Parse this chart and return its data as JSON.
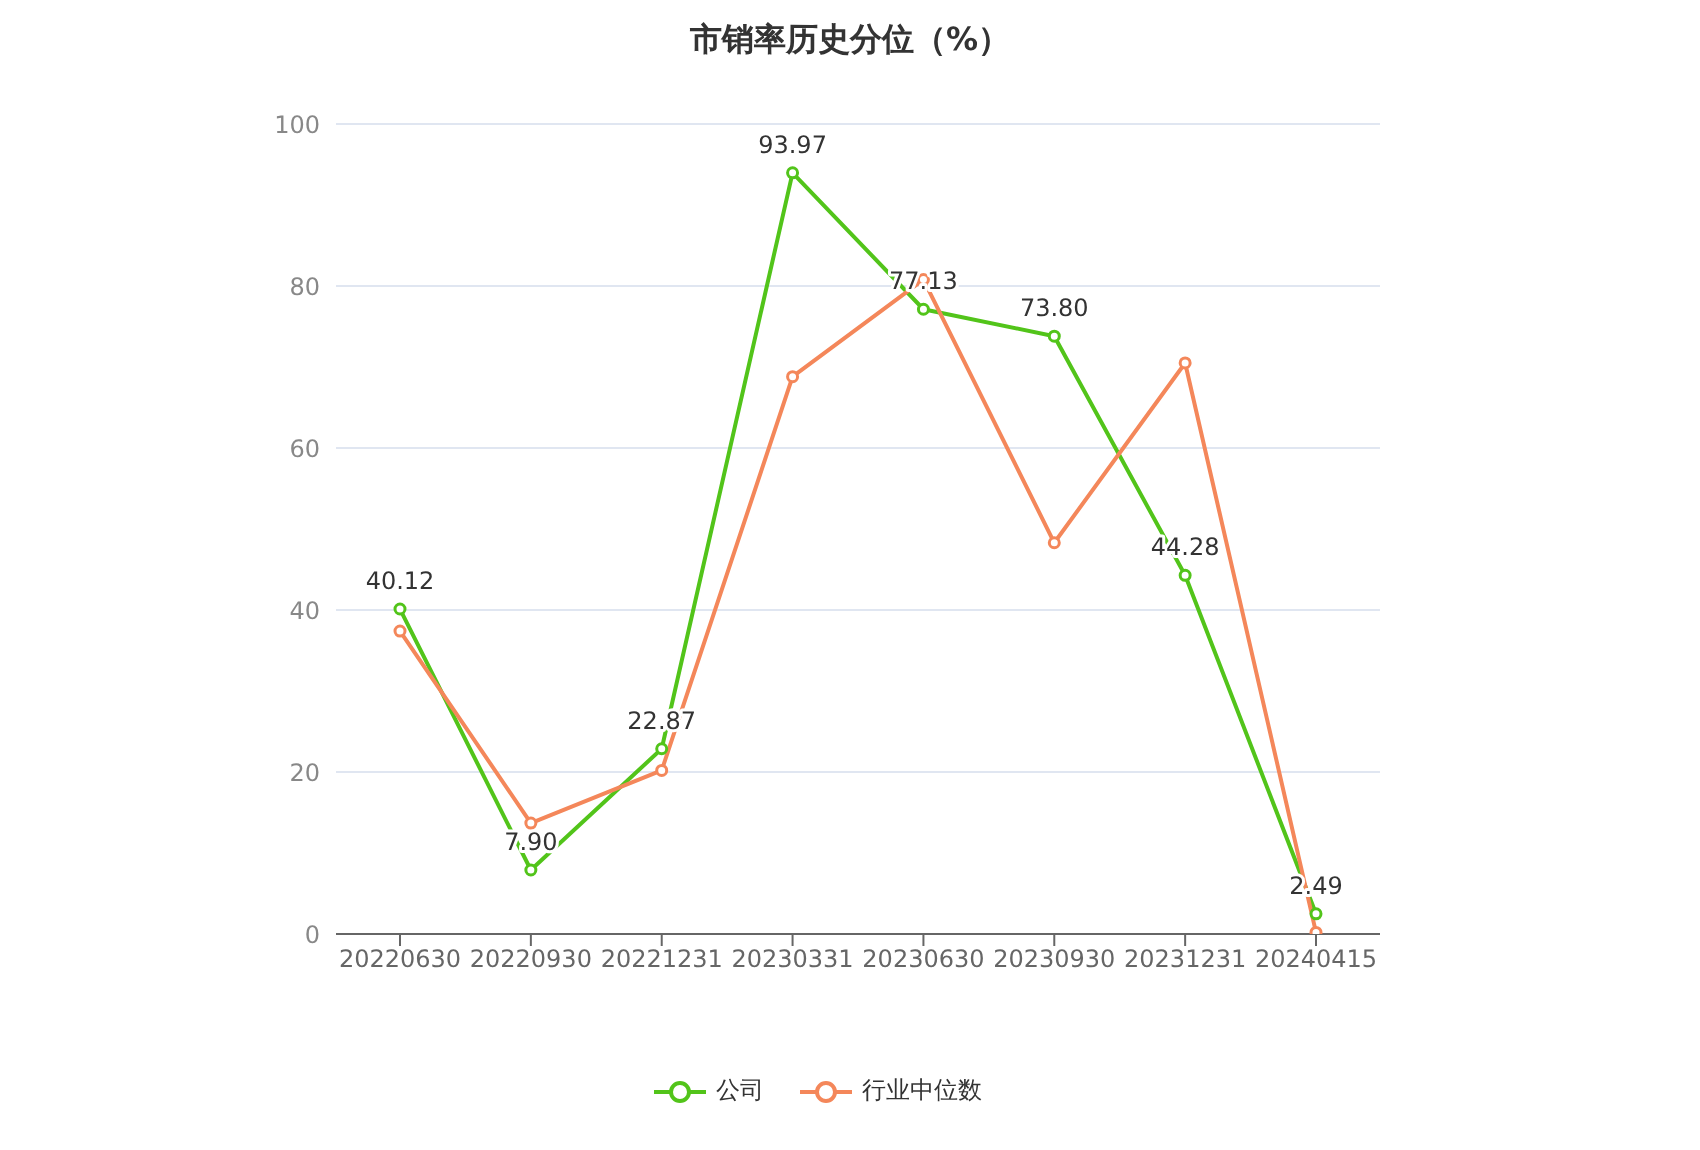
{
  "chart_data": {
    "type": "line",
    "title": "市销率历史分位（%）",
    "categories": [
      "20220630",
      "20220930",
      "20221231",
      "20230331",
      "20230630",
      "20230930",
      "20231231",
      "20240415"
    ],
    "series": [
      {
        "name": "公司",
        "color": "#52c41a",
        "values": [
          40.12,
          7.9,
          22.87,
          93.97,
          77.13,
          73.8,
          44.28,
          2.49
        ],
        "value_labels": [
          "40.12",
          "7.90",
          "22.87",
          "93.97",
          "77.13",
          "73.80",
          "44.28",
          "2.49"
        ]
      },
      {
        "name": "行业中位数",
        "color": "#f4875a",
        "values": [
          37.4,
          13.7,
          20.2,
          68.8,
          80.8,
          48.3,
          70.5,
          0.2
        ]
      }
    ],
    "ylim": [
      0,
      100
    ],
    "yticks": [
      0,
      20,
      40,
      60,
      80,
      100
    ],
    "grid": "y",
    "legend": "bottom",
    "marker": "circle",
    "line_style": "solid"
  }
}
